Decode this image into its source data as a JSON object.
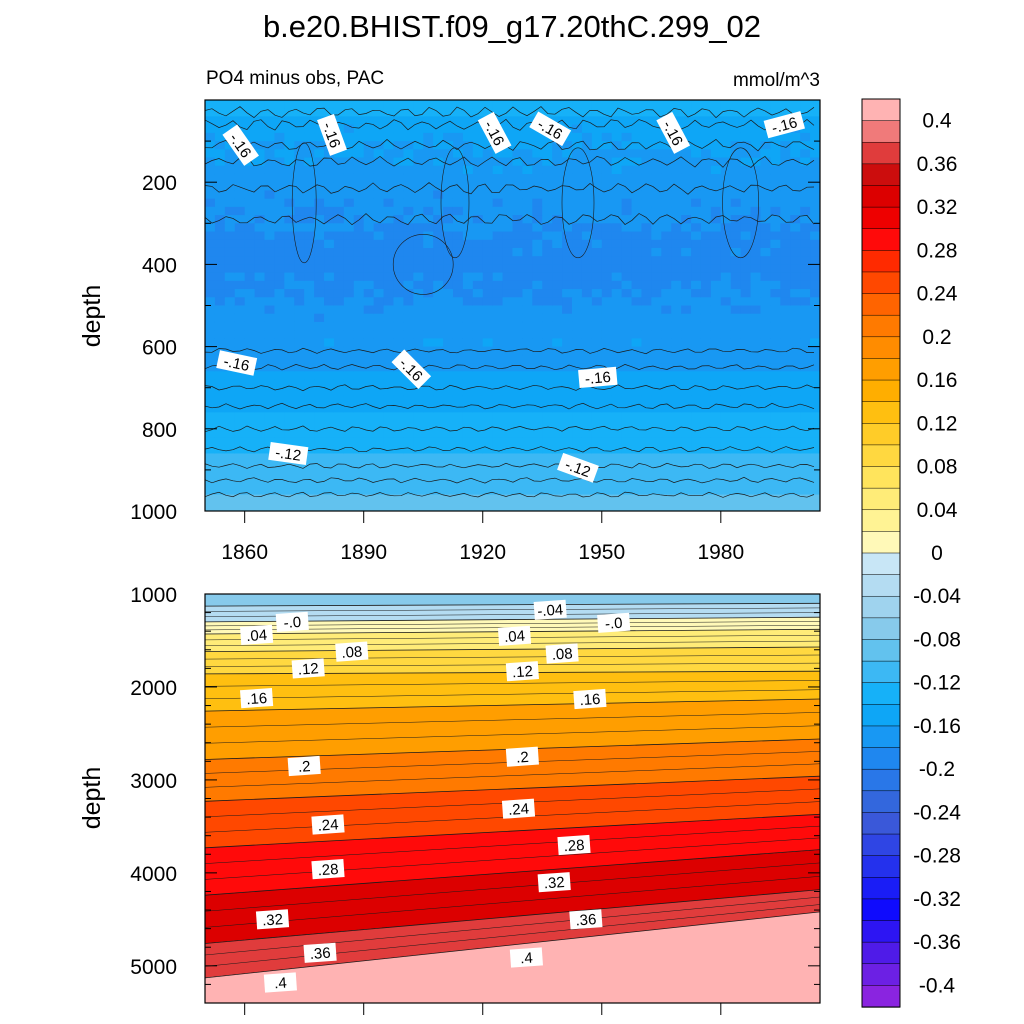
{
  "title": "b.e20.BHIST.f09_g17.20thC.299_02",
  "chart_data": [
    {
      "type": "heatmap",
      "panel": "upper",
      "title_left": "PO4 minus obs, PAC",
      "title_right": "mmol/m^3",
      "xlabel": "",
      "ylabel": "depth",
      "xlim": [
        1850,
        2005
      ],
      "ylim": [
        1000,
        0
      ],
      "xticks": [
        "1860",
        "1890",
        "1920",
        "1950",
        "1980"
      ],
      "yticks": [
        "200",
        "400",
        "600",
        "800",
        "1000"
      ],
      "depth_profile": [
        {
          "depth": 0,
          "value": -0.12
        },
        {
          "depth": 50,
          "value": -0.15
        },
        {
          "depth": 200,
          "value": -0.17
        },
        {
          "depth": 400,
          "value": -0.19
        },
        {
          "depth": 550,
          "value": -0.17
        },
        {
          "depth": 650,
          "value": -0.16
        },
        {
          "depth": 750,
          "value": -0.14
        },
        {
          "depth": 850,
          "value": -0.12
        },
        {
          "depth": 950,
          "value": -0.1
        },
        {
          "depth": 1000,
          "value": -0.09
        }
      ],
      "contour_labels": [
        {
          "text": "-.16",
          "year": 1859,
          "depth": 110,
          "angle": 55
        },
        {
          "text": "-.16",
          "year": 1882,
          "depth": 85,
          "angle": 70
        },
        {
          "text": "-.16",
          "year": 1923,
          "depth": 80,
          "angle": 62
        },
        {
          "text": "-.16",
          "year": 1937,
          "depth": 70,
          "angle": 30
        },
        {
          "text": "-.16",
          "year": 1968,
          "depth": 80,
          "angle": 62
        },
        {
          "text": "-.16",
          "year": 1996,
          "depth": 60,
          "angle": -15
        },
        {
          "text": "-.16",
          "year": 1858,
          "depth": 640,
          "angle": 12
        },
        {
          "text": "-.16",
          "year": 1902,
          "depth": 655,
          "angle": 45
        },
        {
          "text": "-.16",
          "year": 1949,
          "depth": 675,
          "angle": -5
        },
        {
          "text": "-.12",
          "year": 1871,
          "depth": 860,
          "angle": 8
        },
        {
          "text": "-.12",
          "year": 1944,
          "depth": 895,
          "angle": 20
        }
      ]
    },
    {
      "type": "heatmap",
      "panel": "lower",
      "xlabel": "",
      "ylabel": "depth",
      "xlim": [
        1850,
        2005
      ],
      "ylim": [
        5400,
        1000
      ],
      "yticks": [
        "1000",
        "2000",
        "3000",
        "4000",
        "5000"
      ],
      "contour_levels": [
        -0.04,
        0.0,
        0.04,
        0.08,
        0.12,
        0.16,
        0.2,
        0.24,
        0.28,
        0.32,
        0.36,
        0.4
      ],
      "contour_depths_start": [
        1130,
        1300,
        1430,
        1620,
        1860,
        2260,
        2780,
        3230,
        3730,
        4240,
        4760,
        5130
      ],
      "contour_depths_end": [
        1100,
        1250,
        1380,
        1570,
        1830,
        2130,
        2560,
        2960,
        3370,
        3750,
        4180,
        4420
      ],
      "contour_labels": [
        {
          "text": "-.04",
          "year": 1937,
          "depth": 1170
        },
        {
          "text": "-.0",
          "year": 1872,
          "depth": 1300
        },
        {
          "text": "-.0",
          "year": 1953,
          "depth": 1310
        },
        {
          "text": ".04",
          "year": 1863,
          "depth": 1440
        },
        {
          "text": ".04",
          "year": 1928,
          "depth": 1450
        },
        {
          "text": ".08",
          "year": 1887,
          "depth": 1620
        },
        {
          "text": ".08",
          "year": 1940,
          "depth": 1640
        },
        {
          "text": ".12",
          "year": 1876,
          "depth": 1800
        },
        {
          "text": ".12",
          "year": 1930,
          "depth": 1830
        },
        {
          "text": ".16",
          "year": 1863,
          "depth": 2120
        },
        {
          "text": ".16",
          "year": 1947,
          "depth": 2130
        },
        {
          "text": ".2",
          "year": 1875,
          "depth": 2850
        },
        {
          "text": ".2",
          "year": 1930,
          "depth": 2750
        },
        {
          "text": ".24",
          "year": 1881,
          "depth": 3480
        },
        {
          "text": ".24",
          "year": 1929,
          "depth": 3310
        },
        {
          "text": ".28",
          "year": 1881,
          "depth": 3960
        },
        {
          "text": ".28",
          "year": 1943,
          "depth": 3700
        },
        {
          "text": ".32",
          "year": 1867,
          "depth": 4500
        },
        {
          "text": ".32",
          "year": 1938,
          "depth": 4100
        },
        {
          "text": ".36",
          "year": 1879,
          "depth": 4860
        },
        {
          "text": ".36",
          "year": 1946,
          "depth": 4500
        },
        {
          "text": ".4",
          "year": 1869,
          "depth": 5180
        },
        {
          "text": ".4",
          "year": 1931,
          "depth": 4910
        }
      ]
    }
  ],
  "colorbar": {
    "labels": [
      "0.4",
      "0.36",
      "0.32",
      "0.28",
      "0.24",
      "0.2",
      "0.16",
      "0.12",
      "0.08",
      "0.04",
      "0",
      "-0.04",
      "-0.08",
      "-0.12",
      "-0.16",
      "-0.2",
      "-0.24",
      "-0.28",
      "-0.32",
      "-0.36",
      "-0.4"
    ],
    "colors": [
      "#ffb3b3",
      "#f07a7a",
      "#e03c3c",
      "#cc0d0d",
      "#dc0000",
      "#ee0000",
      "#ff0a0a",
      "#ff2a00",
      "#ff4800",
      "#ff6400",
      "#ff7a00",
      "#ff8c00",
      "#ff9e00",
      "#ffae00",
      "#ffbf10",
      "#ffcc28",
      "#ffd840",
      "#ffe45c",
      "#ffec78",
      "#fff394",
      "#fff9b8",
      "#c8e6f6",
      "#b4dcf2",
      "#9fd3ee",
      "#87caeb",
      "#62c2ee",
      "#3cb8f4",
      "#16b1f8",
      "#0ea6f6",
      "#1898f3",
      "#1f87ef",
      "#2977e8",
      "#3367dd",
      "#3a58d9",
      "#2f45e4",
      "#2431ed",
      "#1a1df6",
      "#0f0bfd",
      "#2d15f3",
      "#4f1be8",
      "#6c20e4",
      "#8a24e0"
    ]
  }
}
